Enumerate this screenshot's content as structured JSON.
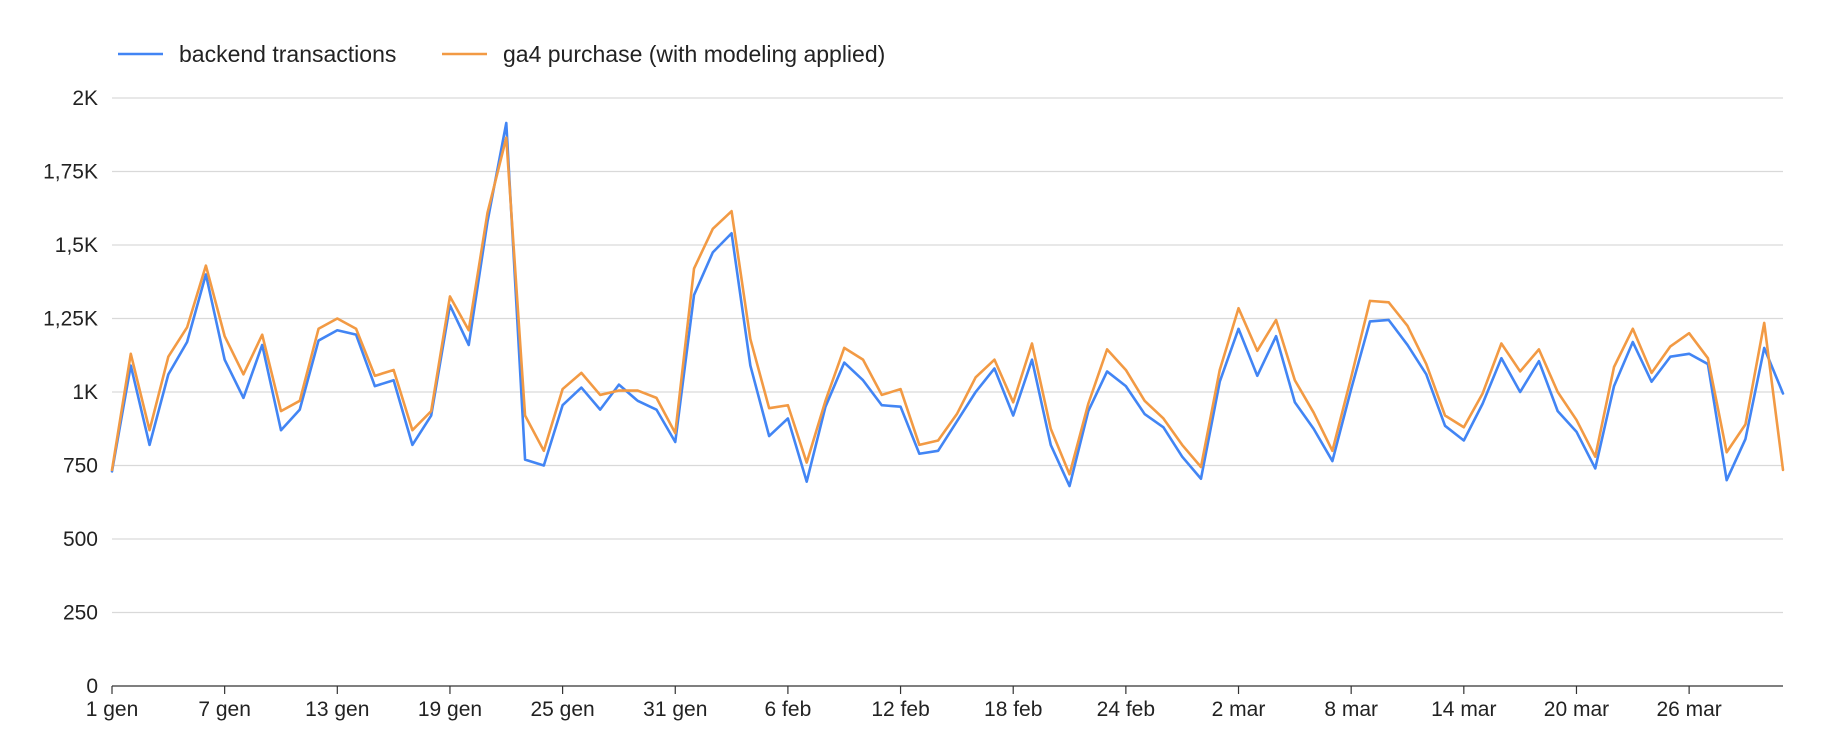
{
  "chart_data": {
    "type": "line",
    "title": "",
    "xlabel": "",
    "ylabel": "",
    "ylim": [
      0,
      2000
    ],
    "yticks": [
      0,
      250,
      500,
      750,
      1000,
      1250,
      1500,
      1750,
      2000
    ],
    "ytick_labels": [
      "0",
      "250",
      "500",
      "750",
      "1K",
      "1,25K",
      "1,5K",
      "1,75K",
      "2K"
    ],
    "xtick_labels": [
      "1 gen",
      "7 gen",
      "13 gen",
      "19 gen",
      "25 gen",
      "31 gen",
      "6 feb",
      "12 feb",
      "18 feb",
      "24 feb",
      "2 mar",
      "8 mar",
      "14 mar",
      "20 mar",
      "26 mar"
    ],
    "xtick_index": [
      0,
      6,
      12,
      18,
      24,
      30,
      36,
      42,
      48,
      54,
      60,
      66,
      72,
      78,
      84
    ],
    "grid": true,
    "legend_position": "top-left",
    "series": [
      {
        "name": "backend transactions",
        "color": "#4285f4",
        "values": [
          730,
          1090,
          820,
          1060,
          1170,
          1400,
          1110,
          980,
          1160,
          870,
          940,
          1175,
          1210,
          1195,
          1020,
          1040,
          820,
          920,
          1295,
          1160,
          1580,
          1915,
          770,
          750,
          955,
          1015,
          940,
          1025,
          970,
          940,
          830,
          1330,
          1475,
          1540,
          1090,
          850,
          910,
          695,
          950,
          1100,
          1040,
          955,
          950,
          790,
          800,
          900,
          1000,
          1080,
          920,
          1110,
          820,
          680,
          935,
          1070,
          1020,
          925,
          880,
          780,
          705,
          1035,
          1215,
          1055,
          1190,
          965,
          875,
          765,
          1010,
          1240,
          1245,
          1160,
          1060,
          885,
          835,
          960,
          1115,
          1000,
          1105,
          935,
          865,
          740,
          1020,
          1170,
          1035,
          1120,
          1130,
          1095,
          700,
          840,
          1150,
          995
        ]
      },
      {
        "name": "ga4 purchase (with modeling applied)",
        "color": "#f29a44",
        "values": [
          735,
          1130,
          870,
          1120,
          1220,
          1430,
          1190,
          1060,
          1195,
          935,
          970,
          1215,
          1250,
          1215,
          1055,
          1075,
          870,
          935,
          1325,
          1210,
          1610,
          1865,
          920,
          800,
          1010,
          1065,
          990,
          1005,
          1005,
          980,
          860,
          1420,
          1555,
          1615,
          1180,
          945,
          955,
          760,
          970,
          1150,
          1110,
          990,
          1010,
          820,
          835,
          925,
          1050,
          1110,
          965,
          1165,
          875,
          720,
          960,
          1145,
          1075,
          970,
          910,
          820,
          745,
          1075,
          1285,
          1140,
          1245,
          1040,
          930,
          800,
          1050,
          1310,
          1305,
          1225,
          1095,
          920,
          880,
          995,
          1165,
          1070,
          1145,
          1000,
          905,
          780,
          1085,
          1215,
          1065,
          1155,
          1200,
          1115,
          795,
          890,
          1235,
          735
        ]
      }
    ]
  }
}
